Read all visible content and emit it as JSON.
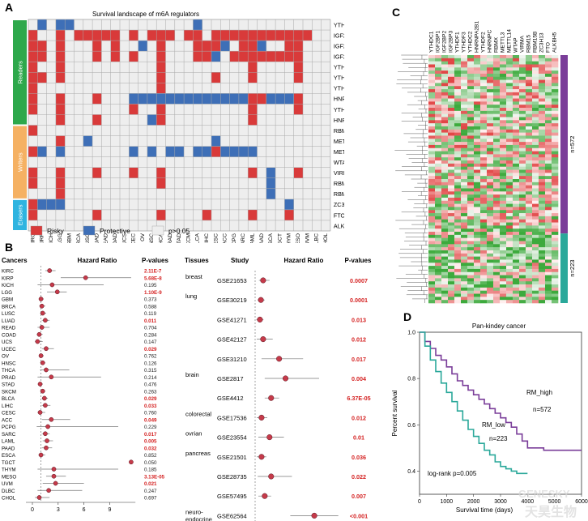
{
  "panelA": {
    "letter": "A",
    "title": "Survival landscape of m6A regulators",
    "genes": [
      "YTHDC1",
      "IGF2BP1",
      "IGF2BP2",
      "IGF2BP3",
      "YTHDF1",
      "YTHDF3",
      "YTHDC2",
      "HNRNPA2B1",
      "YTHDF2",
      "HNRNPC",
      "RBMX",
      "METTL3",
      "METTL14",
      "WTAP",
      "VIRMA",
      "RBM15",
      "RBM15B",
      "ZC3H13",
      "FTO",
      "ALKBH5"
    ],
    "cancers": [
      "KIRC",
      "KIRP",
      "KICH",
      "LGG",
      "GBM",
      "BRCA",
      "LUSC",
      "LUAD",
      "READ",
      "COAD",
      "UCS",
      "UCEC",
      "OV",
      "HNSC",
      "THCA",
      "PRAD",
      "STAD",
      "SKCM",
      "BLCA",
      "LIHC",
      "CESC",
      "ACC",
      "PCPG",
      "SARC",
      "LAML",
      "PAAD",
      "ESCA",
      "TGCT",
      "THYM",
      "MESO",
      "UVM",
      "DLBC",
      "CHOL"
    ],
    "groups": [
      {
        "name": "Readers",
        "color": "#2ea84b"
      },
      {
        "name": "Writers",
        "color": "#f5b163"
      },
      {
        "name": "Erasers",
        "color": "#2fb4e0"
      }
    ],
    "legend": [
      {
        "label": "Risky",
        "color": "#d93a3a"
      },
      {
        "label": "Protective",
        "color": "#3e6fb7"
      },
      {
        "label": "p>0.05",
        "color": "#eeeeee"
      }
    ],
    "cell_colors": {
      "risky": "#d93a3a",
      "protective": "#3e6fb7",
      "ns": "#eeeeee"
    }
  },
  "panelB": {
    "letter": "B",
    "left": {
      "col_cancers": "Cancers",
      "col_hr": "Hazard Ratio",
      "col_p": "P-values",
      "x_ticks": [
        "0",
        "3",
        "6",
        "9"
      ],
      "rows": [
        {
          "c": "KIRC",
          "hr": 2.0,
          "lo": 1.5,
          "hi": 2.7,
          "p": "2.11E-7",
          "sig": true
        },
        {
          "c": "KIRP",
          "hr": 6.2,
          "lo": 3.3,
          "hi": 11.5,
          "p": "5.68E-8",
          "sig": true
        },
        {
          "c": "KICH",
          "hr": 2.3,
          "lo": 0.6,
          "hi": 8.3,
          "p": "0.195",
          "sig": false
        },
        {
          "c": "LGG",
          "hr": 2.9,
          "lo": 1.7,
          "hi": 4.0,
          "p": "1.10E-9",
          "sig": true
        },
        {
          "c": "GBM",
          "hr": 1.0,
          "lo": 0.8,
          "hi": 1.3,
          "p": "0.373",
          "sig": false
        },
        {
          "c": "BRCA",
          "hr": 1.1,
          "lo": 0.8,
          "hi": 1.5,
          "p": "0.588",
          "sig": false
        },
        {
          "c": "LUSC",
          "hr": 1.2,
          "lo": 0.9,
          "hi": 1.6,
          "p": "0.119",
          "sig": false
        },
        {
          "c": "LUAD",
          "hr": 1.5,
          "lo": 1.1,
          "hi": 2.0,
          "p": "0.011",
          "sig": true
        },
        {
          "c": "READ",
          "hr": 1.1,
          "lo": 0.6,
          "hi": 2.0,
          "p": "0.704",
          "sig": false
        },
        {
          "c": "COAD",
          "hr": 0.8,
          "lo": 0.5,
          "hi": 1.2,
          "p": "0.284",
          "sig": false
        },
        {
          "c": "UCS",
          "hr": 0.6,
          "lo": 0.3,
          "hi": 1.2,
          "p": "0.147",
          "sig": false
        },
        {
          "c": "UCEC",
          "hr": 1.6,
          "lo": 1.1,
          "hi": 2.5,
          "p": "0.029",
          "sig": true
        },
        {
          "c": "OV",
          "hr": 1.0,
          "lo": 0.8,
          "hi": 1.3,
          "p": "0.762",
          "sig": false
        },
        {
          "c": "HNSC",
          "hr": 1.2,
          "lo": 0.9,
          "hi": 1.5,
          "p": "0.126",
          "sig": false
        },
        {
          "c": "THCA",
          "hr": 1.6,
          "lo": 0.9,
          "hi": 4.3,
          "p": "0.315",
          "sig": false
        },
        {
          "c": "PRAD",
          "hr": 2.2,
          "lo": 0.6,
          "hi": 8.0,
          "p": "0.214",
          "sig": false
        },
        {
          "c": "STAD",
          "hr": 0.9,
          "lo": 0.7,
          "hi": 1.2,
          "p": "0.476",
          "sig": false
        },
        {
          "c": "SKCM",
          "hr": 1.2,
          "lo": 0.9,
          "hi": 1.5,
          "p": "0.263",
          "sig": false
        },
        {
          "c": "BLCA",
          "hr": 1.4,
          "lo": 1.1,
          "hi": 1.8,
          "p": "0.029",
          "sig": true
        },
        {
          "c": "LIHC",
          "hr": 1.5,
          "lo": 1.1,
          "hi": 2.1,
          "p": "0.033",
          "sig": true
        },
        {
          "c": "CESC",
          "hr": 0.9,
          "lo": 0.6,
          "hi": 1.5,
          "p": "0.760",
          "sig": false
        },
        {
          "c": "ACC",
          "hr": 2.2,
          "lo": 1.1,
          "hi": 4.4,
          "p": "0.049",
          "sig": true
        },
        {
          "c": "PCPG",
          "hr": 1.8,
          "lo": 0.5,
          "hi": 10.0,
          "p": "0.229",
          "sig": false
        },
        {
          "c": "SARC",
          "hr": 1.5,
          "lo": 1.1,
          "hi": 2.0,
          "p": "0.017",
          "sig": true
        },
        {
          "c": "LAML",
          "hr": 1.7,
          "lo": 1.2,
          "hi": 2.4,
          "p": "0.005",
          "sig": true
        },
        {
          "c": "PAAD",
          "hr": 1.6,
          "lo": 1.1,
          "hi": 2.3,
          "p": "0.032",
          "sig": true
        },
        {
          "c": "ESCA",
          "hr": 1.0,
          "lo": 0.7,
          "hi": 1.5,
          "p": "0.852",
          "sig": false
        },
        {
          "c": "TGCT",
          "hr": 11.5,
          "lo": 11.4,
          "hi": 11.6,
          "p": "0.050",
          "sig": false
        },
        {
          "c": "THYM",
          "hr": 2.5,
          "lo": 0.6,
          "hi": 10.0,
          "p": "0.185",
          "sig": false
        },
        {
          "c": "MESO",
          "hr": 2.5,
          "lo": 1.6,
          "hi": 3.9,
          "p": "3.13E-05",
          "sig": true
        },
        {
          "c": "UVM",
          "hr": 2.7,
          "lo": 1.2,
          "hi": 6.0,
          "p": "0.021",
          "sig": true
        },
        {
          "c": "DLBC",
          "hr": 1.9,
          "lo": 0.6,
          "hi": 5.8,
          "p": "0.247",
          "sig": false
        },
        {
          "c": "CHOL",
          "hr": 0.8,
          "lo": 0.3,
          "hi": 2.0,
          "p": "0.697",
          "sig": false
        }
      ]
    },
    "right": {
      "col_tissues": "Tissues",
      "col_study": "Study",
      "col_hr": "Hazard Ratio",
      "col_p": "P-values",
      "x_ticks": [
        "1",
        "2",
        "3",
        "4"
      ],
      "rows": [
        {
          "t": "breast",
          "s": "GSE21653",
          "hr": 1.25,
          "lo": 1.12,
          "hi": 1.45,
          "p": "0.0007"
        },
        {
          "t": "lung",
          "s": "GSE30219",
          "hr": 1.18,
          "lo": 1.08,
          "hi": 1.3,
          "p": "0.0001"
        },
        {
          "t": "",
          "s": "GSE41271",
          "hr": 1.15,
          "lo": 1.04,
          "hi": 1.26,
          "p": "0.013"
        },
        {
          "t": "",
          "s": "GSE42127",
          "hr": 1.25,
          "lo": 1.05,
          "hi": 1.55,
          "p": "0.012"
        },
        {
          "t": "",
          "s": "GSE31210",
          "hr": 1.75,
          "lo": 1.2,
          "hi": 2.5,
          "p": "0.017"
        },
        {
          "t": "brain",
          "s": "GSE2817",
          "hr": 1.95,
          "lo": 1.3,
          "hi": 3.0,
          "p": "0.004"
        },
        {
          "t": "",
          "s": "GSE4412",
          "hr": 1.5,
          "lo": 1.3,
          "hi": 1.75,
          "p": "6.37E-05"
        },
        {
          "t": "colorectal",
          "s": "GSE17536",
          "hr": 1.2,
          "lo": 1.05,
          "hi": 1.38,
          "p": "0.012"
        },
        {
          "t": "ovrian",
          "s": "GSE23554",
          "hr": 1.45,
          "lo": 1.1,
          "hi": 1.9,
          "p": "0.01"
        },
        {
          "t": "pancreas",
          "s": "GSE21501",
          "hr": 1.2,
          "lo": 1.05,
          "hi": 1.35,
          "p": "0.036"
        },
        {
          "t": "",
          "s": "GSE28735",
          "hr": 1.5,
          "lo": 1.08,
          "hi": 2.15,
          "p": "0.022"
        },
        {
          "t": "",
          "s": "GSE57495",
          "hr": 1.3,
          "lo": 1.1,
          "hi": 1.5,
          "p": "0.007"
        },
        {
          "t": "neuro-endocrine",
          "s": "GSE62564",
          "hr": 2.85,
          "lo": 2.1,
          "hi": 3.6,
          "p": "<0.001"
        }
      ]
    }
  },
  "panelC": {
    "letter": "C",
    "genes": [
      "YTHDC1",
      "IGF2BP1",
      "IGF2BP2",
      "IGF2BP3",
      "YTHDF1",
      "YTHDF3",
      "YTHDC2",
      "HNRNPA2B1",
      "YTHDF2",
      "HNRNPC",
      "RBMX",
      "METTL3",
      "METTL14",
      "WTAP",
      "VIRMA",
      "RBM15",
      "RBM15B",
      "ZC3H13",
      "FTO",
      "ALKBH5"
    ],
    "groups": [
      {
        "label": "n=572",
        "color": "#7a3d99"
      },
      {
        "label": "n=223",
        "color": "#2aa89a"
      }
    ]
  },
  "panelD": {
    "letter": "D",
    "title": "Pan-kindey cancer",
    "xlabel": "Survival time (days)",
    "ylabel": "Percent survival",
    "x_ticks": [
      "0",
      "1000",
      "2000",
      "3000",
      "4000",
      "5000",
      "6000"
    ],
    "y_ticks": [
      "0.4",
      "0.6",
      "0.8",
      "1.0"
    ],
    "logrank": "log-rank p=0.005",
    "chart_data": {
      "type": "line",
      "xlabel": "Survival time (days)",
      "ylabel": "Percent survival",
      "xlim": [
        0,
        6000
      ],
      "ylim": [
        0.3,
        1.0
      ],
      "series": [
        {
          "name": "RM_high",
          "n": "n=572",
          "color": "#7a3d99",
          "x": [
            0,
            200,
            400,
            600,
            800,
            1000,
            1200,
            1400,
            1600,
            1800,
            2000,
            2200,
            2400,
            2600,
            2800,
            3000,
            3200,
            3400,
            3600,
            3800,
            4000,
            4200,
            4400,
            4600,
            4800,
            5000,
            6000
          ],
          "y": [
            1.0,
            0.96,
            0.93,
            0.9,
            0.88,
            0.85,
            0.82,
            0.79,
            0.77,
            0.75,
            0.73,
            0.71,
            0.69,
            0.67,
            0.65,
            0.63,
            0.61,
            0.59,
            0.56,
            0.53,
            0.5,
            0.5,
            0.5,
            0.49,
            0.49,
            0.49,
            0.49
          ]
        },
        {
          "name": "RM_low",
          "n": "n=223",
          "color": "#2aa89a",
          "x": [
            0,
            200,
            400,
            600,
            800,
            1000,
            1200,
            1400,
            1600,
            1800,
            2000,
            2200,
            2400,
            2600,
            2800,
            3000,
            3200,
            3400,
            3600,
            3800,
            4000
          ],
          "y": [
            1.0,
            0.94,
            0.88,
            0.83,
            0.78,
            0.74,
            0.7,
            0.66,
            0.62,
            0.58,
            0.55,
            0.52,
            0.49,
            0.47,
            0.44,
            0.42,
            0.41,
            0.4,
            0.39,
            0.39,
            0.39
          ]
        }
      ]
    }
  },
  "watermark": {
    "text1": "GENESKY",
    "text2": "天昊生物"
  }
}
